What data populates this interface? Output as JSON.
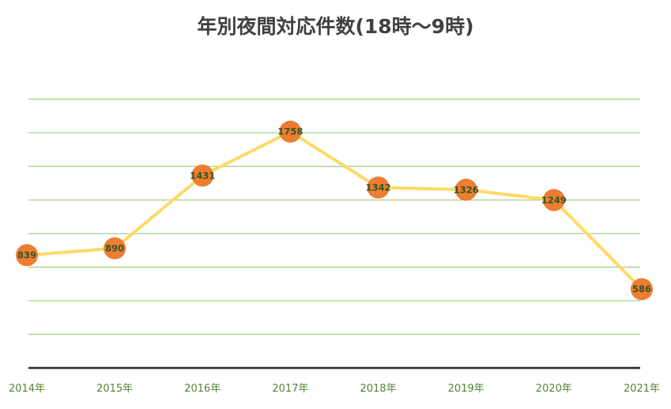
{
  "chart_data": {
    "type": "line",
    "title": "年別夜間対応件数(18時～9時)",
    "xlabel": "",
    "ylabel": "",
    "categories": [
      "2014年",
      "2015年",
      "2016年",
      "2017年",
      "2018年",
      "2019年",
      "2020年",
      "2021年"
    ],
    "series": [
      {
        "values": [
          839,
          890,
          1431,
          1758,
          1342,
          1326,
          1249,
          586
        ]
      }
    ],
    "ylim": [
      0,
      2250
    ],
    "gridline_step": 250,
    "grid": true,
    "legend": "none",
    "data_labels": true,
    "colors": {
      "line": "#FFD966",
      "marker": "#ED7D31",
      "data_label": "#375623",
      "tick_label": "#548235",
      "gridline": "#A9D18E",
      "axis": "#262626"
    }
  }
}
